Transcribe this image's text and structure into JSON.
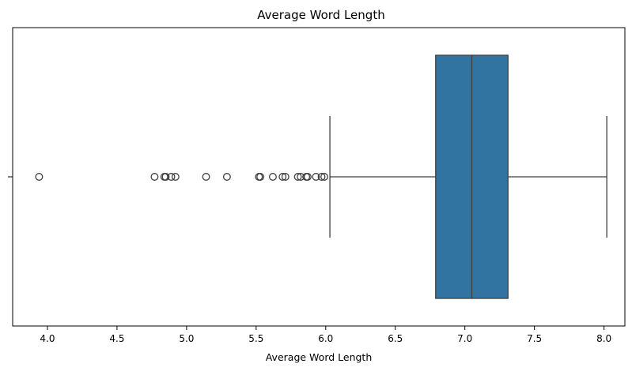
{
  "chart_data": {
    "type": "box",
    "title": "Average Word Length",
    "xlabel": "Average Word Length",
    "ylabel": "",
    "xlim": [
      3.75,
      8.15
    ],
    "xticks": [
      4.0,
      4.5,
      5.0,
      5.5,
      6.0,
      6.5,
      7.0,
      7.5,
      8.0
    ],
    "xtick_labels": [
      "4.0",
      "4.5",
      "5.0",
      "5.5",
      "6.0",
      "6.5",
      "7.0",
      "7.5",
      "8.0"
    ],
    "grid": false,
    "box": {
      "whisker_low": 6.03,
      "q1": 6.79,
      "median": 7.05,
      "q3": 7.31,
      "whisker_high": 8.02,
      "color": "#3274a1",
      "edge_color": "#3f3f3f"
    },
    "outliers": [
      3.94,
      4.77,
      4.84,
      4.85,
      4.89,
      4.92,
      5.14,
      5.29,
      5.52,
      5.53,
      5.62,
      5.69,
      5.71,
      5.8,
      5.82,
      5.86,
      5.87,
      5.93,
      5.97,
      5.99
    ]
  }
}
